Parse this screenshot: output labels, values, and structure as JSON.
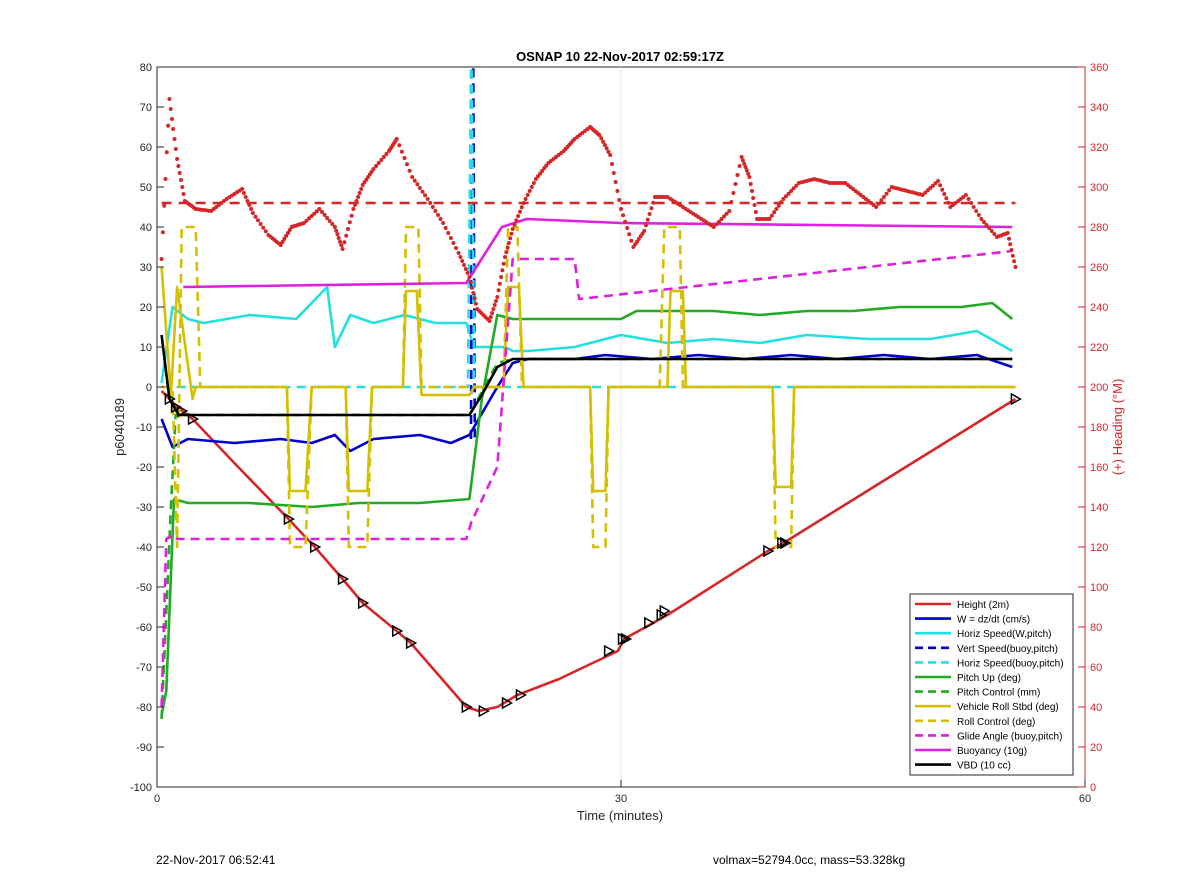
{
  "chart_data": {
    "type": "line",
    "title": "OSNAP 10 22-Nov-2017 02:59:17Z",
    "xlabel": "Time (minutes)",
    "ylabel_left": "p6040189",
    "ylabel_right": "(+) Heading (°M)",
    "xlim": [
      0,
      60
    ],
    "ylim_left": [
      -100,
      80
    ],
    "ylim_right": [
      0,
      360
    ],
    "x_ticks": [
      "0",
      "30",
      "60"
    ],
    "y_ticks_left": [
      "80",
      "70",
      "60",
      "50",
      "40",
      "30",
      "20",
      "10",
      "0",
      "-10",
      "-20",
      "-30",
      "-40",
      "-50",
      "-60",
      "-70",
      "-80",
      "-90",
      "-100"
    ],
    "y_ticks_right": [
      "360",
      "340",
      "320",
      "300",
      "280",
      "260",
      "240",
      "220",
      "200",
      "180",
      "160",
      "140",
      "120",
      "100",
      "80",
      "60",
      "40",
      "20",
      "0"
    ],
    "grid": "x-only",
    "legend_position": "bottom-right",
    "heading_color": "#d62728",
    "series": [
      {
        "name": "Height (2m)",
        "color": "#d62728",
        "style": "solid",
        "x": [
          0.3,
          0.8,
          1.3,
          2.3,
          5,
          8.5,
          10.2,
          12,
          13.3,
          15.5,
          16.4,
          20,
          20.8,
          22,
          23.3,
          26,
          29.8,
          30.2,
          33,
          39.5,
          40.5,
          55.5
        ],
        "y": [
          -1,
          -3,
          -5,
          -8,
          -19,
          -33,
          -40,
          -48,
          -54,
          -61,
          -64,
          -80,
          -81,
          -80,
          -77,
          -73,
          -66,
          -63,
          -57,
          -41,
          -39,
          -3
        ]
      },
      {
        "name": "W = dz/dt (cm/s)",
        "color": "#0000cc",
        "style": "solid",
        "x": [
          0.3,
          1,
          2,
          5,
          8,
          10,
          11.5,
          12.5,
          14,
          17,
          19,
          20.2,
          20.8,
          22,
          23,
          24,
          25,
          27,
          29,
          32,
          35,
          38,
          41,
          44,
          47,
          50,
          53,
          55.3
        ],
        "y": [
          -8,
          -15,
          -13,
          -14,
          -13,
          -14,
          -12,
          -16,
          -13,
          -12,
          -14,
          -12,
          -8,
          0,
          6,
          7,
          7,
          7,
          8,
          7,
          8,
          7,
          8,
          7,
          8,
          7,
          8,
          5
        ]
      },
      {
        "name": "Horiz Speed(W,pitch)",
        "color": "#22e0e0",
        "style": "solid",
        "x": [
          0.3,
          1,
          2,
          3,
          6,
          9,
          11,
          11.5,
          12.5,
          14,
          16,
          18,
          20,
          20.5,
          22.5,
          23,
          24,
          27,
          30,
          33,
          36,
          39,
          42,
          46,
          50,
          53,
          55.3
        ],
        "y": [
          1,
          20,
          17,
          16,
          18,
          17,
          25,
          10,
          18,
          16,
          18,
          16,
          16,
          10,
          10,
          9,
          9,
          10,
          13,
          11,
          12,
          11,
          13,
          12,
          12,
          14,
          9
        ]
      },
      {
        "name": "Vert Speed(buoy,pitch)",
        "color": "#0000cc",
        "style": "dashed",
        "x": [
          20.3,
          20.35,
          20.45,
          20.55
        ],
        "y": [
          -13,
          80,
          80,
          -13
        ]
      },
      {
        "name": "Horiz Speed(buoy,pitch)",
        "color": "#22e0e0",
        "style": "dashed",
        "x": [
          0.3,
          20,
          20.1,
          20.3,
          20.35,
          20.5,
          22,
          55.3
        ],
        "y": [
          0,
          0,
          0,
          80,
          80,
          0,
          0,
          0
        ]
      },
      {
        "name": "Pitch Up (deg)",
        "color": "#22aa22",
        "style": "solid",
        "x": [
          0.3,
          0.6,
          1.1,
          2,
          6,
          10,
          13,
          17,
          20.2,
          21,
          22,
          23,
          26,
          30,
          31,
          33,
          36,
          39,
          42,
          45,
          48,
          52,
          54,
          55.3
        ],
        "y": [
          -82,
          -76,
          -28,
          -29,
          -29,
          -30,
          -29,
          -29,
          -28,
          -3,
          18,
          17,
          17,
          17,
          19,
          19,
          19,
          18,
          19,
          19,
          20,
          20,
          21,
          17
        ]
      },
      {
        "name": "Pitch Control (mm)",
        "color": "#22aa22",
        "style": "dashed",
        "x": [
          0.3,
          0.9,
          1.2,
          20.2,
          22,
          23,
          55.3
        ],
        "y": [
          -83,
          -30,
          -7,
          -7,
          6,
          7,
          7
        ]
      },
      {
        "name": "Vehicle Roll Stbd (deg)",
        "color": "#d4c000",
        "style": "solid",
        "x": [
          0.3,
          0.9,
          1.3,
          2.3,
          2.5,
          8.4,
          8.6,
          9.6,
          10,
          12.2,
          12.4,
          13.6,
          13.9,
          15.9,
          16.1,
          16.8,
          17.1,
          20.2,
          20.5,
          22.4,
          22.7,
          23.4,
          23.7,
          28,
          28.2,
          29,
          29.2,
          33,
          33.2,
          34,
          34.2,
          39.8,
          40,
          41,
          41.2,
          55.5
        ],
        "y": [
          30,
          -2,
          25,
          -3,
          0,
          0,
          -26,
          -26,
          0,
          0,
          -26,
          -26,
          0,
          0,
          24,
          24,
          -2,
          -2,
          0,
          0,
          25,
          25,
          0,
          0,
          -26,
          -26,
          0,
          0,
          24,
          24,
          0,
          0,
          -25,
          -25,
          0,
          0
        ]
      },
      {
        "name": "Roll Control (deg)",
        "color": "#d4c000",
        "style": "dashed",
        "x": [
          0.3,
          1,
          1.3,
          1.6,
          2.5,
          2.8,
          8.4,
          8.6,
          9.6,
          10,
          12.2,
          12.4,
          13.6,
          13.9,
          15.9,
          16.1,
          16.9,
          17.1,
          22.4,
          22.7,
          23.3,
          23.6,
          28,
          28.2,
          29,
          29.2,
          32.5,
          32.8,
          33.8,
          34,
          39.8,
          40,
          41,
          41.2,
          55.5
        ],
        "y": [
          0,
          0,
          -40,
          40,
          40,
          0,
          0,
          -40,
          -40,
          0,
          0,
          -40,
          -40,
          0,
          0,
          40,
          40,
          0,
          0,
          40,
          40,
          0,
          0,
          -40,
          -40,
          0,
          0,
          40,
          40,
          0,
          0,
          -40,
          -40,
          0,
          0
        ]
      },
      {
        "name": "Glide Angle (buoy,pitch)",
        "color": "#e020e0",
        "style": "dashed",
        "x": [
          0.3,
          0.6,
          1,
          1.3,
          20,
          20.3,
          22,
          23,
          27,
          27.3,
          55.3
        ],
        "y": [
          -80,
          -38,
          -37,
          -38,
          -38,
          -34,
          -20,
          32,
          32,
          22,
          34
        ]
      },
      {
        "name": "Buoyancy (10g)",
        "color": "#e020e0",
        "style": "solid",
        "x": [
          1.7,
          20,
          22.3,
          23.9,
          30,
          55.3
        ],
        "y": [
          25,
          26,
          40,
          42,
          41,
          40
        ]
      },
      {
        "name": "VBD (10 cc)",
        "color": "#000000",
        "style": "solid",
        "x": [
          0.3,
          0.8,
          1.4,
          2,
          20.2,
          21,
          22,
          23,
          24,
          30,
          40,
          55.3
        ],
        "y": [
          13,
          -3,
          -7,
          -7,
          -7,
          -2,
          5,
          7,
          7,
          7,
          7,
          7
        ]
      }
    ],
    "heading_x": [
      0.3,
      0.8,
      1.3,
      1.8,
      2.5,
      3.5,
      4.5,
      5.5,
      6.2,
      7.2,
      8,
      8.7,
      9.5,
      10.5,
      11.5,
      12,
      12.7,
      13.3,
      14,
      15,
      15.5,
      16.5,
      17.5,
      18.5,
      19.5,
      20.2,
      20.7,
      21.5,
      22,
      22.5,
      23,
      23.7,
      24.5,
      25.3,
      26.3,
      27,
      28,
      28.6,
      29.3,
      30,
      30.8,
      31.5,
      32.2,
      33,
      34,
      35,
      36,
      37,
      37.8,
      38.3,
      38.8,
      39.6,
      40.5,
      41.5,
      42.5,
      43.5,
      44.5,
      45.5,
      46.5,
      47.5,
      48.5,
      49.5,
      50.5,
      51.3,
      52.3,
      53.3,
      54.3,
      55,
      55.5
    ],
    "heading_y": [
      264,
      344,
      314,
      293,
      289,
      288,
      294,
      299,
      287,
      276,
      271,
      280,
      282,
      289,
      280,
      269,
      289,
      301,
      309,
      318,
      324,
      305,
      294,
      282,
      267,
      255,
      239,
      233,
      245,
      265,
      279,
      292,
      304,
      312,
      318,
      324,
      330,
      326,
      316,
      289,
      270,
      278,
      295,
      295,
      290,
      285,
      280,
      288,
      315,
      305,
      284,
      284,
      294,
      302,
      304,
      302,
      302,
      296,
      290,
      300,
      298,
      296,
      303,
      290,
      296,
      284,
      275,
      277,
      260
    ],
    "heading_mean_deg": 292,
    "markers": {
      "x": [
        0.8,
        1.2,
        1.6,
        2.3,
        8.5,
        10.2,
        12,
        13.3,
        15.5,
        16.4,
        20,
        21.1,
        22.6,
        23.5,
        29.2,
        30.1,
        30.3,
        31.8,
        32.6,
        32.8,
        39.5,
        40.4,
        40.6,
        55.5
      ],
      "y": [
        -3,
        -5,
        -6,
        -8,
        -33,
        -40,
        -48,
        -54,
        -61,
        -64,
        -80,
        -81,
        -79,
        -77,
        -66,
        -63,
        -63,
        -59,
        -57,
        -56,
        -41,
        -39,
        -39,
        -3
      ]
    }
  },
  "footer": {
    "left": "22-Nov-2017 06:52:41",
    "right": "volmax=52794.0cc, mass=53.328kg"
  }
}
